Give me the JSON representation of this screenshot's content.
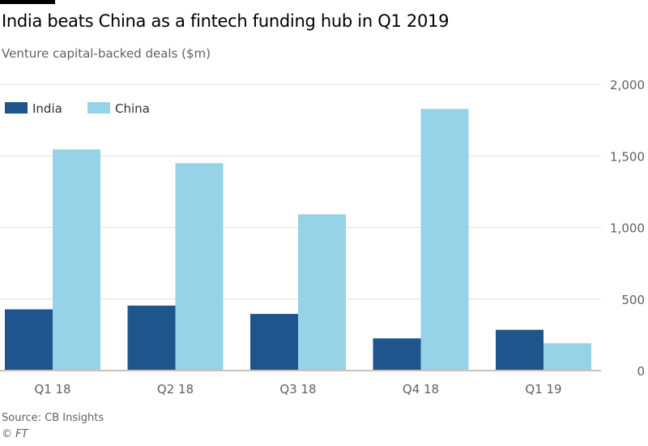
{
  "title": "India beats China as a fintech funding hub in Q1 2019",
  "subtitle": "Venture capital-backed deals ($m)",
  "source": "Source: CB Insights",
  "credit": "© FT",
  "colors": {
    "India": "#1e558c",
    "China": "#96d3e6",
    "grid": "#e9dfd6",
    "axis": "#ccc1b7"
  },
  "chart_data": {
    "type": "bar",
    "categories": [
      "Q1 18",
      "Q2 18",
      "Q3 18",
      "Q4 18",
      "Q1 19"
    ],
    "series": [
      {
        "name": "India",
        "values": [
          428,
          454,
          396,
          225,
          285
        ]
      },
      {
        "name": "China",
        "values": [
          1545,
          1449,
          1092,
          1828,
          191
        ]
      }
    ],
    "ylim": [
      0,
      2000
    ],
    "yticks": [
      0,
      500,
      1000,
      1500,
      2000
    ],
    "ytick_labels": [
      "0",
      "500",
      "1,000",
      "1,500",
      "2,000"
    ],
    "yaxis_position": "right",
    "grid": true,
    "legend": "top-left"
  }
}
